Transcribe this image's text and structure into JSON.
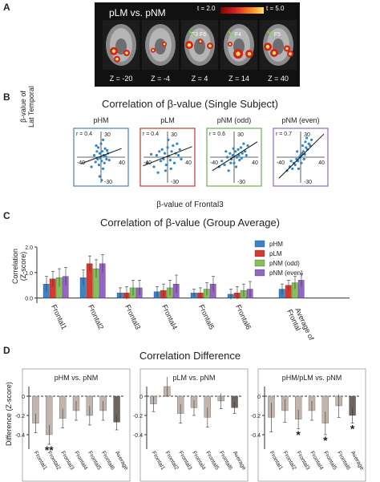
{
  "panel_labels": {
    "a": "A",
    "b": "B",
    "c": "C",
    "d": "D"
  },
  "panelA": {
    "title": "pLM vs. pNM",
    "t_low": "t = 2.0",
    "t_high": "t = 5.0",
    "slices": [
      {
        "z": "Z = -20",
        "label": ""
      },
      {
        "z": "Z = -4",
        "label": ""
      },
      {
        "z": "Z = 4",
        "label": "F3 F6"
      },
      {
        "z": "Z = 14",
        "label": "F4"
      },
      {
        "z": "Z = 40",
        "label": "F5"
      }
    ],
    "colors": {
      "low": "#d42020",
      "high": "#ffe45c",
      "bg": "#111111"
    }
  },
  "panelB": {
    "title": "Correlation of β-value (Single Subject)",
    "ylabel_line1": "β-value of",
    "ylabel_line2": "Lat Temporal",
    "xlabel": "β-value of Frontal3",
    "axis_ticks": {
      "x_min": "-40",
      "x_max": "40",
      "y_max": "30",
      "y_min": "-30"
    }
  },
  "panelC": {
    "title": "Correlation of β-value (Group Average)",
    "ylabel_line1": "Correlation",
    "ylabel_line2": "(Z-score)",
    "y_ticks": [
      "2.0",
      "1.0",
      "0.0"
    ]
  },
  "panelD": {
    "title": "Correlation Difference",
    "ylabel": "Difference (Z-score)",
    "y_ticks": [
      "0",
      "-0.2",
      "-0.4"
    ]
  },
  "chart_data": [
    {
      "type": "scatter",
      "title": "Correlation of β-value (Single Subject)",
      "xlabel": "β-value of Frontal3",
      "ylabel": "β-value of Lat Temporal",
      "xlim": [
        -40,
        40
      ],
      "ylim": [
        -30,
        30
      ],
      "subplots": [
        {
          "name": "pHM",
          "r": "r = 0.4",
          "frame_color": "#4a7fc1",
          "points": [
            [
              -14,
              -10
            ],
            [
              -10,
              2
            ],
            [
              -8,
              -5
            ],
            [
              -6,
              6
            ],
            [
              -5,
              -2
            ],
            [
              -4,
              10
            ],
            [
              -3,
              -8
            ],
            [
              -2,
              4
            ],
            [
              -1,
              -1
            ],
            [
              0,
              14
            ],
            [
              1,
              -4
            ],
            [
              2,
              6
            ],
            [
              3,
              -12
            ],
            [
              4,
              2
            ],
            [
              5,
              -6
            ],
            [
              6,
              9
            ],
            [
              7,
              1
            ],
            [
              8,
              -2
            ],
            [
              10,
              4
            ],
            [
              12,
              -3
            ],
            [
              -2,
              -20
            ],
            [
              1,
              -24
            ],
            [
              3,
              18
            ],
            [
              -7,
              12
            ],
            [
              9,
              7
            ]
          ],
          "fit": [
            [
              -30,
              -7
            ],
            [
              30,
              9
            ]
          ]
        },
        {
          "name": "pLM",
          "r": "r = 0.4",
          "frame_color": "#c0392b",
          "points": [
            [
              -30,
              -6
            ],
            [
              -24,
              3
            ],
            [
              -20,
              -10
            ],
            [
              -16,
              2
            ],
            [
              -12,
              6
            ],
            [
              -10,
              -4
            ],
            [
              -8,
              8
            ],
            [
              -6,
              -2
            ],
            [
              -4,
              4
            ],
            [
              -2,
              -8
            ],
            [
              0,
              10
            ],
            [
              2,
              1
            ],
            [
              4,
              -3
            ],
            [
              6,
              6
            ],
            [
              8,
              12
            ],
            [
              10,
              -6
            ],
            [
              12,
              4
            ],
            [
              14,
              14
            ],
            [
              16,
              2
            ],
            [
              18,
              8
            ],
            [
              -3,
              -14
            ],
            [
              5,
              -12
            ],
            [
              20,
              -2
            ],
            [
              -14,
              -16
            ],
            [
              1,
              18
            ]
          ],
          "fit": [
            [
              -36,
              -9
            ],
            [
              36,
              11
            ]
          ]
        },
        {
          "name": "pNM (odd)",
          "r": "r = 0.6",
          "frame_color": "#6ab04c",
          "points": [
            [
              -22,
              -10
            ],
            [
              -18,
              -4
            ],
            [
              -14,
              -8
            ],
            [
              -10,
              0
            ],
            [
              -8,
              -14
            ],
            [
              -6,
              4
            ],
            [
              -4,
              -2
            ],
            [
              -2,
              2
            ],
            [
              0,
              -6
            ],
            [
              2,
              6
            ],
            [
              4,
              0
            ],
            [
              6,
              8
            ],
            [
              8,
              -3
            ],
            [
              10,
              10
            ],
            [
              12,
              4
            ],
            [
              14,
              14
            ],
            [
              16,
              6
            ],
            [
              20,
              12
            ],
            [
              -12,
              6
            ],
            [
              3,
              -10
            ],
            [
              -5,
              -6
            ],
            [
              7,
              2
            ],
            [
              11,
              -1
            ],
            [
              -1,
              9
            ],
            [
              18,
              2
            ]
          ],
          "fit": [
            [
              -32,
              -14
            ],
            [
              34,
              16
            ]
          ]
        },
        {
          "name": "pNM (even)",
          "r": "r = 0.7",
          "frame_color": "#8e6bbd",
          "points": [
            [
              -20,
              -14
            ],
            [
              -16,
              -10
            ],
            [
              -12,
              -12
            ],
            [
              -10,
              -6
            ],
            [
              -8,
              -8
            ],
            [
              -6,
              -2
            ],
            [
              -4,
              -4
            ],
            [
              -2,
              0
            ],
            [
              0,
              2
            ],
            [
              2,
              4
            ],
            [
              4,
              6
            ],
            [
              6,
              3
            ],
            [
              8,
              10
            ],
            [
              10,
              8
            ],
            [
              12,
              14
            ],
            [
              14,
              12
            ],
            [
              -3,
              -12
            ],
            [
              5,
              -2
            ],
            [
              16,
              18
            ],
            [
              -14,
              -4
            ],
            [
              1,
              -6
            ],
            [
              7,
              16
            ],
            [
              9,
              20
            ],
            [
              -5,
              6
            ],
            [
              3,
              12
            ]
          ],
          "fit": [
            [
              -32,
              -22
            ],
            [
              34,
              24
            ]
          ]
        }
      ]
    },
    {
      "type": "bar",
      "title": "Correlation of β-value (Group Average)",
      "ylabel": "Correlation (Z-score)",
      "ylim": [
        -0.2,
        2.0
      ],
      "categories": [
        "Frontal1",
        "Frontal2",
        "Frontal3",
        "Frontal4",
        "Frontal5",
        "Frontal6",
        "Average of Frontal"
      ],
      "series": [
        {
          "name": "pHM",
          "color": "#3a83c5",
          "values": [
            0.55,
            0.8,
            0.2,
            0.25,
            0.2,
            0.15,
            0.35
          ],
          "errors": [
            0.3,
            0.3,
            0.2,
            0.2,
            0.15,
            0.2,
            0.2
          ]
        },
        {
          "name": "pLM",
          "color": "#d43a2f",
          "values": [
            0.75,
            1.35,
            0.2,
            0.3,
            0.2,
            0.2,
            0.5
          ],
          "errors": [
            0.3,
            0.3,
            0.25,
            0.25,
            0.2,
            0.25,
            0.2
          ]
        },
        {
          "name": "pNM (odd)",
          "color": "#86c05b",
          "values": [
            0.8,
            1.15,
            0.4,
            0.4,
            0.35,
            0.3,
            0.6
          ],
          "errors": [
            0.35,
            0.35,
            0.3,
            0.3,
            0.25,
            0.25,
            0.25
          ]
        },
        {
          "name": "pNM (even)",
          "color": "#9466c4",
          "values": [
            0.85,
            1.35,
            0.4,
            0.55,
            0.55,
            0.35,
            0.7
          ],
          "errors": [
            0.35,
            0.35,
            0.3,
            0.35,
            0.3,
            0.3,
            0.25
          ]
        }
      ],
      "legend": "top-right"
    },
    {
      "type": "bar",
      "title": "Correlation Difference",
      "ylabel": "Difference (Z-score)",
      "ylim": [
        -0.55,
        0.1
      ],
      "subplots": [
        {
          "name": "pHM vs. pNM",
          "categories": [
            "Frontal1",
            "Frontal2",
            "Frontal3",
            "Frontal4",
            "Frontal5",
            "Frontal6",
            "Average"
          ],
          "values": [
            -0.28,
            -0.4,
            -0.23,
            -0.15,
            -0.2,
            -0.15,
            -0.27
          ],
          "errors": [
            0.1,
            0.1,
            0.1,
            0.1,
            0.1,
            0.1,
            0.08
          ],
          "significance": [
            "",
            "**",
            "",
            "",
            "",
            "",
            ""
          ]
        },
        {
          "name": "pLM vs. pNM",
          "categories": [
            "Frontal1",
            "Frontal2",
            "Frontal3",
            "Frontal4",
            "Frontal5",
            "Frontal6",
            "Average"
          ],
          "values": [
            -0.08,
            0.1,
            -0.18,
            -0.12,
            -0.22,
            -0.05,
            -0.12
          ],
          "errors": [
            0.08,
            0.1,
            0.1,
            0.08,
            0.1,
            0.08,
            0.06
          ],
          "significance": [
            "",
            "",
            "",
            "",
            "",
            "",
            ""
          ]
        },
        {
          "name": "pHM/pLM vs. pNM",
          "categories": [
            "Frontal1",
            "Frontal2",
            "Frontal3",
            "Frontal4",
            "Frontal5",
            "Frontal6",
            "Average"
          ],
          "values": [
            -0.22,
            -0.15,
            -0.24,
            -0.15,
            -0.28,
            -0.1,
            -0.2
          ],
          "errors": [
            0.15,
            0.12,
            0.1,
            0.1,
            0.12,
            0.12,
            0.08
          ],
          "significance": [
            "",
            "",
            "*",
            "",
            "*",
            "",
            "*"
          ]
        }
      ]
    }
  ]
}
